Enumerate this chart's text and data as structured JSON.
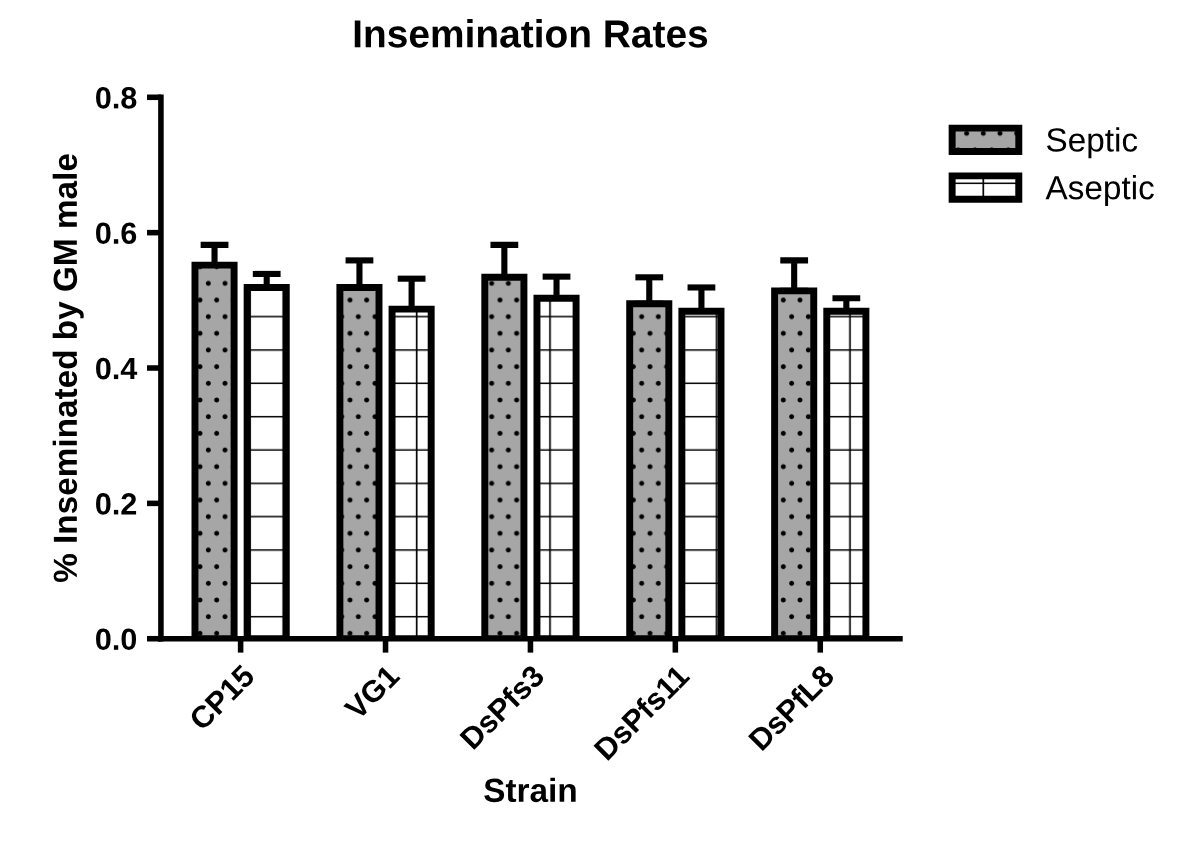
{
  "chart_data": {
    "type": "bar",
    "title": "Insemination Rates",
    "xlabel": "Strain",
    "ylabel": "% Inseminated by GM male",
    "categories": [
      "CP15",
      "VG1",
      "DsPfs3",
      "DsPfs11",
      "DsPfL8"
    ],
    "series": [
      {
        "name": "Septic",
        "color": "#a6a6a6",
        "values": [
          0.552,
          0.519,
          0.534,
          0.495,
          0.514
        ],
        "errors": [
          0.03,
          0.04,
          0.048,
          0.039,
          0.045
        ]
      },
      {
        "name": "Aseptic",
        "color": "#ffffff",
        "values": [
          0.519,
          0.487,
          0.503,
          0.484,
          0.484
        ],
        "errors": [
          0.02,
          0.045,
          0.032,
          0.035,
          0.019
        ]
      }
    ],
    "ylim": [
      0,
      0.8
    ],
    "yticks": [
      {
        "value": 0,
        "label": "0.0"
      },
      {
        "value": 0.2,
        "label": "0.2"
      },
      {
        "value": 0.4,
        "label": "0.4"
      },
      {
        "value": 0.6,
        "label": "0.6"
      },
      {
        "value": 0.8,
        "label": "0.8"
      }
    ],
    "grid": false,
    "legend": "top right"
  }
}
